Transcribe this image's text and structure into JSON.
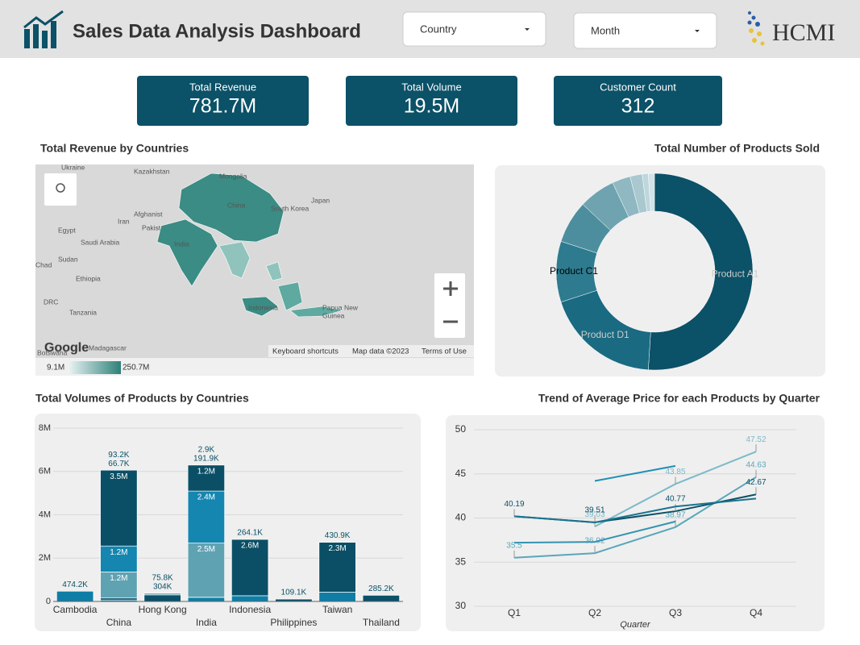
{
  "header": {
    "title": "Sales Data Analysis Dashboard",
    "filters": [
      "Country",
      "Month"
    ],
    "logo": "HCMI"
  },
  "kpis": [
    {
      "label": "Total Revenue",
      "value": "781.7M"
    },
    {
      "label": "Total Volume",
      "value": "19.5M"
    },
    {
      "label": "Customer Count",
      "value": "312"
    }
  ],
  "map": {
    "title": "Total Revenue by Countries",
    "places": [
      "Ukraine",
      "Kazakhstan",
      "Mongolia",
      "Afghanist",
      "Iran",
      "Pakist",
      "India",
      "China",
      "South Korea",
      "Japan",
      "Egypt",
      "Saudi Arabia",
      "Sudan",
      "Chad",
      "Ethiopia",
      "DRC",
      "Tanzania",
      "Indonesia",
      "Papua New",
      "Guinea",
      "Madagascar",
      "Botswana"
    ],
    "attribution": [
      "Keyboard shortcuts",
      "Map data ©2023",
      "Terms of Use"
    ],
    "logo": "Google",
    "legend": {
      "min": "9.1M",
      "max": "250.7M"
    }
  },
  "chart_data": [
    {
      "type": "donut",
      "title": "Total Number of Products Sold",
      "categories": [
        "Product A1",
        "Product D1",
        "Product C1",
        null,
        null,
        null,
        null,
        null,
        null
      ],
      "values": [
        51,
        19,
        10,
        7,
        6,
        3,
        2,
        1,
        1
      ],
      "colors": [
        "#0b5167",
        "#1a6a82",
        "#2e7b8f",
        "#4c8e9d",
        "#6fa3b0",
        "#8fb8c2",
        "#a9c8d0",
        "#bed6dc",
        "#d2e2e6"
      ]
    },
    {
      "type": "stacked_bar",
      "title": "Total Volumes of Products by Countries",
      "categories": [
        "Cambodia",
        "China",
        "Hong Kong",
        "India",
        "Indonesia",
        "Philippines",
        "Taiwan",
        "Thailand"
      ],
      "ylim": [
        0,
        8000000
      ],
      "yticks": [
        0,
        {
          "value": 2000000,
          "label": "2M"
        },
        {
          "value": 4000000,
          "label": "4M"
        },
        {
          "value": 6000000,
          "label": "6M"
        },
        {
          "value": 8000000,
          "label": "8M"
        }
      ],
      "grid": true,
      "series": [
        {
          "color": "#0e7ea6",
          "values": [
            474200,
            66700,
            null,
            191900,
            264100,
            null,
            430900,
            null
          ],
          "value_labels": [
            "474.2K",
            "66.7K",
            null,
            "191.9K",
            "264.1K",
            null,
            "430.9K",
            null
          ]
        },
        {
          "color": "#0a5068",
          "values": [
            null,
            93200,
            304000,
            2900,
            null,
            109100,
            null,
            285200
          ],
          "value_labels": [
            null,
            "93.2K",
            "304K",
            "2.9K",
            null,
            "109.1K",
            null,
            "285.2K"
          ]
        },
        {
          "color": "#5fa3b3",
          "values": [
            null,
            1200000,
            75800,
            2500000,
            null,
            null,
            null,
            null
          ],
          "value_labels": [
            null,
            "1.2M",
            "75.8K",
            "2.5M",
            null,
            null,
            null,
            null
          ]
        },
        {
          "color": "#1486b0",
          "values": [
            null,
            1200000,
            null,
            2400000,
            null,
            null,
            null,
            null
          ],
          "value_labels": [
            null,
            "1.2M",
            null,
            "2.4M",
            null,
            null,
            null,
            null
          ]
        },
        {
          "color": "#0a4f66",
          "values": [
            null,
            3500000,
            null,
            1200000,
            2600000,
            null,
            2300000,
            null
          ],
          "value_labels": [
            null,
            "3.5M",
            null,
            "1.2M",
            "2.6M",
            null,
            "2.3M",
            null
          ]
        }
      ]
    },
    {
      "type": "line",
      "title": "Trend of Average Price for each Products by Quarter",
      "x_label": "Quarter",
      "categories": [
        "Q1",
        "Q2",
        "Q3",
        "Q4"
      ],
      "ylim": [
        30,
        50
      ],
      "yticks": [
        30,
        35,
        40,
        45,
        50
      ],
      "grid": true,
      "series": [
        {
          "color": "#1f8fb5",
          "values": [
            null,
            44.2,
            45.9,
            null
          ],
          "value_labels": [
            null,
            null,
            null,
            null
          ]
        },
        {
          "color": "#7cb9c9",
          "values": [
            null,
            39.03,
            43.85,
            47.52
          ],
          "value_labels": [
            null,
            "39.03",
            "43.85",
            "47.52"
          ]
        },
        {
          "color": "#5aa6bb",
          "values": [
            35.5,
            36.02,
            38.97,
            44.63
          ],
          "value_labels": [
            "35.5",
            "36.02",
            "38.97",
            "44.63"
          ]
        },
        {
          "color": "#0b5167",
          "values": [
            40.19,
            39.51,
            40.77,
            42.67
          ],
          "value_labels": [
            "40.19",
            "39.51",
            "40.77",
            "42.67"
          ]
        },
        {
          "color": "#1b7390",
          "values": [
            40.19,
            39.5,
            41.3,
            42.2
          ],
          "value_labels": [
            null,
            null,
            null,
            null
          ]
        },
        {
          "color": "#3393b2",
          "values": [
            37.2,
            37.3,
            39.6,
            null
          ],
          "value_labels": [
            null,
            null,
            null,
            null
          ]
        }
      ]
    }
  ]
}
